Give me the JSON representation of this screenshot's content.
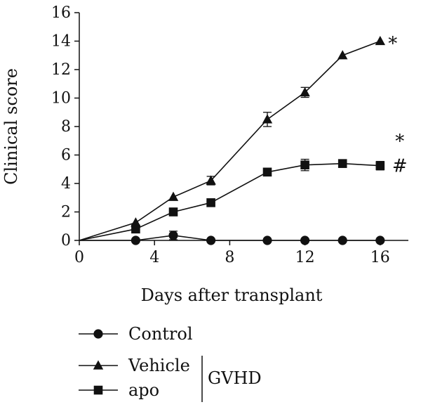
{
  "chart_data": {
    "type": "line",
    "xlabel": "Days after transplant",
    "ylabel": "Clinical score",
    "xlim": [
      0,
      17.5
    ],
    "ylim": [
      0,
      16
    ],
    "xticks": [
      0,
      4,
      8,
      12,
      16
    ],
    "yticks": [
      0,
      2,
      4,
      6,
      8,
      10,
      12,
      14,
      16
    ],
    "grid": false,
    "legend_position": "bottom-left",
    "series": [
      {
        "name": "Control",
        "marker": "circle",
        "points": [
          {
            "x": 0,
            "y": 0
          },
          {
            "x": 3,
            "y": 0
          },
          {
            "x": 5,
            "y": 0.35,
            "err": 0.3
          },
          {
            "x": 7,
            "y": 0
          },
          {
            "x": 10,
            "y": 0
          },
          {
            "x": 12,
            "y": 0
          },
          {
            "x": 14,
            "y": 0
          },
          {
            "x": 16,
            "y": 0
          }
        ]
      },
      {
        "name": "Vehicle",
        "marker": "triangle",
        "points": [
          {
            "x": 0,
            "y": 0
          },
          {
            "x": 3,
            "y": 1.25
          },
          {
            "x": 5,
            "y": 3.05
          },
          {
            "x": 7,
            "y": 4.2,
            "err": 0.3
          },
          {
            "x": 10,
            "y": 8.5,
            "err": 0.5
          },
          {
            "x": 12,
            "y": 10.4,
            "err": 0.35
          },
          {
            "x": 14,
            "y": 13.0
          },
          {
            "x": 16,
            "y": 14.0
          }
        ]
      },
      {
        "name": "apo",
        "marker": "square",
        "points": [
          {
            "x": 0,
            "y": 0
          },
          {
            "x": 3,
            "y": 0.8
          },
          {
            "x": 5,
            "y": 2.0
          },
          {
            "x": 7,
            "y": 2.65
          },
          {
            "x": 10,
            "y": 4.8
          },
          {
            "x": 12,
            "y": 5.3,
            "err": 0.4
          },
          {
            "x": 14,
            "y": 5.4
          },
          {
            "x": 16,
            "y": 5.25,
            "err": 0.3
          }
        ]
      }
    ],
    "annotations": [
      {
        "text": "*",
        "series": "Vehicle",
        "x": 16
      },
      {
        "text": "*",
        "series": "apo",
        "x": 16
      },
      {
        "text": "#",
        "series": "apo",
        "x": 16
      }
    ],
    "legend_group_label": "GVHD"
  }
}
